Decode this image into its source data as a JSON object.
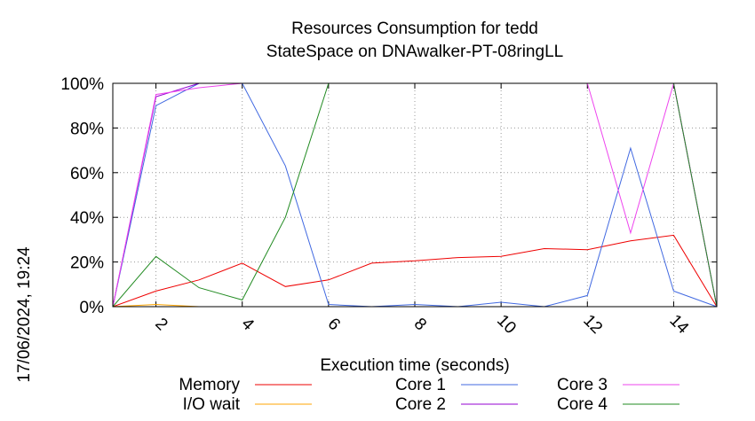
{
  "chart_data": {
    "type": "line",
    "title": "Resources Consumption for tedd",
    "subtitle": "StateSpace on DNAwalker-PT-08ringLL",
    "xlabel": "Execution time (seconds)",
    "ylabel": "",
    "side_label": "17/06/2024, 19:24",
    "xlim": [
      1,
      15
    ],
    "ylim": [
      0,
      100
    ],
    "x_ticks": [
      2,
      4,
      6,
      8,
      10,
      12,
      14
    ],
    "y_ticks": [
      0,
      20,
      40,
      60,
      80,
      100
    ],
    "y_tick_labels": [
      "0%",
      "20%",
      "40%",
      "60%",
      "80%",
      "100%"
    ],
    "grid": true,
    "legend_position": "bottom",
    "series": [
      {
        "name": "Memory",
        "color": "#ee0000",
        "x": [
          1,
          2,
          3,
          4,
          5,
          6,
          7,
          8,
          9,
          10,
          11,
          12,
          13,
          14,
          15
        ],
        "y": [
          0,
          7,
          12,
          19.5,
          9,
          12,
          19.5,
          20.5,
          22,
          22.5,
          26,
          25.5,
          29.5,
          32,
          0
        ]
      },
      {
        "name": "I/O wait",
        "color": "#ffa500",
        "x": [
          1,
          2,
          3,
          4,
          5,
          6,
          7,
          8,
          9,
          10,
          11,
          12,
          13,
          14,
          15
        ],
        "y": [
          0,
          1,
          0,
          0,
          0,
          0,
          0,
          0,
          0,
          0,
          0,
          0,
          0,
          0,
          0
        ]
      },
      {
        "name": "Core 1",
        "color": "#4169e1",
        "x": [
          1,
          2,
          3,
          4,
          5,
          6,
          7,
          8,
          9,
          10,
          11,
          12,
          13,
          14,
          15
        ],
        "y": [
          0,
          90,
          100,
          100,
          63,
          1,
          0,
          1,
          0,
          2,
          0,
          5,
          71,
          7,
          0
        ]
      },
      {
        "name": "Core 2",
        "color": "#9400d3",
        "x": [
          1,
          2,
          3,
          4,
          5,
          6,
          7,
          8,
          9,
          10,
          11,
          12,
          13,
          14,
          15
        ],
        "y": [
          0,
          94,
          100,
          100,
          100,
          100,
          100,
          100,
          100,
          100,
          100,
          100,
          100,
          100,
          0
        ]
      },
      {
        "name": "Core 3",
        "color": "#ee44ee",
        "x": [
          1,
          2,
          3,
          4,
          5,
          6,
          7,
          8,
          9,
          10,
          11,
          12,
          13,
          14,
          15
        ],
        "y": [
          0,
          95,
          98,
          100,
          100,
          100,
          100,
          100,
          100,
          100,
          100,
          100,
          33,
          100,
          0
        ]
      },
      {
        "name": "Core 4",
        "color": "#228b22",
        "x": [
          1,
          2,
          3,
          4,
          5,
          6,
          7,
          8,
          9,
          10,
          11,
          12,
          13,
          14,
          15
        ],
        "y": [
          0,
          22.5,
          8.5,
          3,
          40,
          100,
          100,
          100,
          100,
          100,
          100,
          100,
          100,
          100,
          0
        ]
      }
    ]
  }
}
